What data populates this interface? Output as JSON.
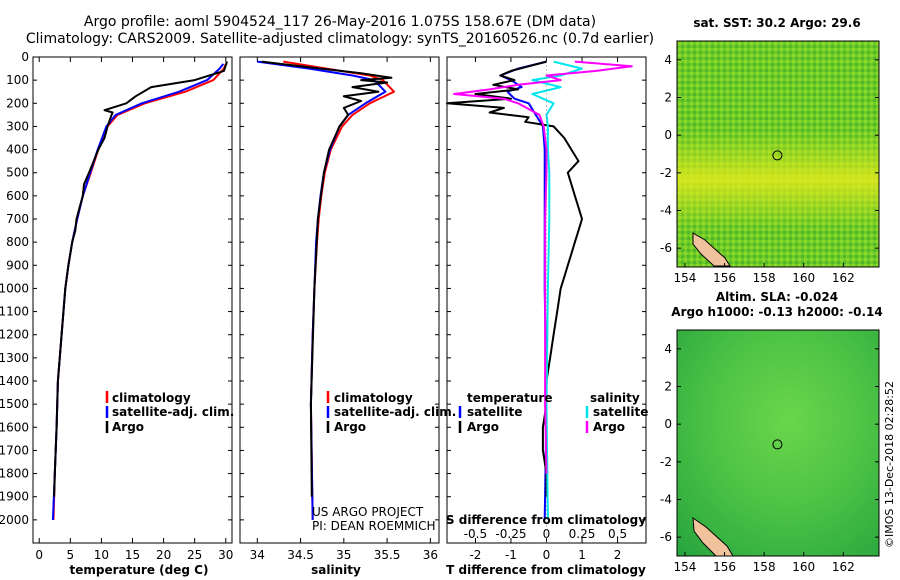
{
  "header": {
    "line1": "Argo profile: aoml 5904524_117 26-May-2016 1.075S 158.67E (DM data)",
    "line2": "Climatology: CARS2009. Satellite-adjusted climatology: synTS_20160526.nc (0.7d earlier)"
  },
  "credit": {
    "line1": "US ARGO PROJECT",
    "line2": "PI: DEAN ROEMMICH"
  },
  "watermark": "©IMOS 13-Dec-2018 02:28:52",
  "colors": {
    "climatology": "#ff0000",
    "satellite": "#0000ff",
    "argo": "#000000",
    "sat_salinity": "#00e5ee",
    "argo_salinity": "#ff00ff"
  },
  "chart_data": [
    {
      "type": "line",
      "xlabel": "temperature (deg C)",
      "ylabel": "",
      "xlim": [
        -1,
        31
      ],
      "ylim": [
        2100,
        0
      ],
      "y_inverted": true,
      "xticks": [
        0,
        5,
        10,
        15,
        20,
        25,
        30
      ],
      "yticks": [
        0,
        100,
        200,
        300,
        400,
        500,
        600,
        700,
        800,
        900,
        1000,
        1100,
        1200,
        1300,
        1400,
        1500,
        1600,
        1700,
        1800,
        1900,
        2000
      ],
      "legend": [
        "climatology",
        "satellite-adj. clim.",
        "Argo"
      ],
      "series": [
        {
          "name": "climatology",
          "color": "#ff0000",
          "depth": [
            30,
            50,
            100,
            150,
            200,
            250,
            300,
            400,
            500,
            600,
            700,
            800,
            900,
            1000,
            1200,
            1400,
            1600,
            1800,
            2000
          ],
          "values": [
            30.0,
            29.7,
            28.0,
            23.5,
            17.0,
            12.6,
            11.0,
            9.5,
            8.3,
            7.0,
            6.1,
            5.3,
            4.7,
            4.2,
            3.6,
            3.0,
            2.8,
            2.5,
            2.3
          ]
        },
        {
          "name": "satellite-adj. clim.",
          "color": "#0000ff",
          "depth": [
            30,
            50,
            100,
            150,
            200,
            250,
            300,
            400,
            500,
            600,
            700,
            800,
            900,
            1000,
            1200,
            1400,
            1600,
            1800,
            2000
          ],
          "values": [
            29.6,
            29.0,
            27.0,
            22.5,
            16.5,
            12.3,
            10.8,
            9.4,
            8.2,
            7.0,
            6.1,
            5.3,
            4.7,
            4.2,
            3.6,
            3.0,
            2.8,
            2.5,
            2.2
          ]
        },
        {
          "name": "Argo",
          "color": "#000000",
          "depth": [
            20,
            60,
            100,
            130,
            170,
            200,
            230,
            240,
            260,
            300,
            350,
            400,
            500,
            550,
            600,
            650,
            700,
            750,
            800,
            900,
            1000,
            1200,
            1400,
            1600,
            1800,
            1900
          ],
          "values": [
            30.2,
            29.7,
            25.0,
            18.0,
            15.5,
            14.0,
            10.5,
            11.8,
            11.5,
            11.0,
            10.5,
            9.5,
            8.0,
            7.2,
            7.0,
            6.5,
            6.0,
            5.8,
            5.3,
            4.7,
            4.2,
            3.6,
            3.0,
            2.8,
            2.5,
            2.4
          ]
        }
      ]
    },
    {
      "type": "line",
      "xlabel": "salinity",
      "ylabel": "",
      "xlim": [
        33.8,
        36.1
      ],
      "ylim": [
        2100,
        0
      ],
      "y_inverted": true,
      "xticks": [
        34,
        34.5,
        35,
        35.5,
        36
      ],
      "xticklabels": [
        "34",
        "34.5",
        "35",
        "35.5",
        "36"
      ],
      "legend": [
        "climatology",
        "satellite-adj. clim.",
        "Argo"
      ],
      "series": [
        {
          "name": "climatology",
          "color": "#ff0000",
          "depth": [
            20,
            50,
            80,
            100,
            150,
            200,
            250,
            300,
            400,
            500,
            600,
            700,
            800,
            1000,
            1200,
            1500,
            2000
          ],
          "values": [
            34.3,
            34.8,
            35.3,
            35.45,
            35.58,
            35.3,
            35.1,
            34.98,
            34.85,
            34.78,
            34.74,
            34.71,
            34.69,
            34.66,
            34.64,
            34.62,
            34.64
          ]
        },
        {
          "name": "satellite-adj. clim.",
          "color": "#0000ff",
          "depth": [
            20,
            50,
            80,
            100,
            150,
            200,
            250,
            300,
            400,
            500,
            600,
            700,
            800,
            1000,
            1200,
            1500,
            2000
          ],
          "values": [
            34.0,
            34.6,
            35.1,
            35.35,
            35.48,
            35.25,
            35.05,
            34.95,
            34.84,
            34.77,
            34.73,
            34.7,
            34.68,
            34.66,
            34.64,
            34.62,
            34.64
          ]
        },
        {
          "name": "Argo",
          "color": "#000000",
          "depth": [
            20,
            40,
            70,
            90,
            100,
            110,
            130,
            150,
            170,
            190,
            220,
            250,
            300,
            400,
            500,
            700,
            1000,
            1500,
            1900
          ],
          "values": [
            34.05,
            34.5,
            35.2,
            35.55,
            35.2,
            35.5,
            35.1,
            35.4,
            35.0,
            35.2,
            35.0,
            35.05,
            34.95,
            34.83,
            34.77,
            34.7,
            34.66,
            34.62,
            34.63
          ]
        }
      ]
    },
    {
      "type": "line",
      "xlabel": "T difference from climatology",
      "xlabel_top": "S difference from climatology",
      "ylabel": "",
      "xlim": [
        -2.8,
        2.8
      ],
      "ylim": [
        2100,
        0
      ],
      "y_inverted": true,
      "xticks": [
        -2,
        -1,
        0,
        1,
        2
      ],
      "xticks_top": [
        -0.5,
        -0.25,
        0,
        0.25,
        0.5
      ],
      "xticklabels_top": [
        "-0.5",
        "-0.25",
        "0",
        "0.25",
        "0.5"
      ],
      "legend_left_title": "temperature",
      "legend_left": [
        "satellite",
        "Argo"
      ],
      "legend_right_title": "salinity",
      "legend_right": [
        "satellite",
        "Argo"
      ],
      "series": [
        {
          "name": "temperature satellite",
          "color": "#0000ff",
          "depth": [
            20,
            50,
            80,
            100,
            130,
            150,
            180,
            200,
            250,
            300,
            400,
            500,
            700,
            1000,
            1500,
            2000
          ],
          "values": [
            0.0,
            -0.8,
            -1.3,
            -1.0,
            -0.7,
            -1.1,
            -0.9,
            -0.5,
            -0.3,
            -0.1,
            -0.05,
            -0.05,
            -0.05,
            -0.05,
            0.0,
            -0.05
          ]
        },
        {
          "name": "temperature Argo",
          "color": "#000000",
          "depth": [
            20,
            40,
            60,
            80,
            100,
            120,
            140,
            160,
            180,
            200,
            220,
            240,
            260,
            280,
            300,
            350,
            400,
            450,
            500,
            550,
            600,
            650,
            700,
            750,
            800,
            850,
            900,
            950,
            1000,
            1100,
            1200,
            1300,
            1400,
            1500,
            1600,
            1700,
            1800,
            1900
          ],
          "values": [
            0.0,
            -0.5,
            -1.0,
            -1.3,
            -0.9,
            -1.5,
            -0.8,
            -2.0,
            -1.0,
            -2.8,
            -1.2,
            -1.6,
            -0.5,
            -0.6,
            0.2,
            0.5,
            0.7,
            0.9,
            0.6,
            0.7,
            0.8,
            0.9,
            1.0,
            0.9,
            0.8,
            0.7,
            0.6,
            0.5,
            0.4,
            0.3,
            0.2,
            0.1,
            0.0,
            0.0,
            -0.1,
            -0.1,
            0.0,
            0.0
          ]
        },
        {
          "name": "salinity satellite",
          "color": "#00e5ee",
          "depth": [
            20,
            50,
            80,
            100,
            130,
            160,
            200,
            250,
            300,
            400,
            500,
            700,
            1000,
            1500,
            2000
          ],
          "values": [
            0.05,
            0.25,
            0.1,
            -0.1,
            0.1,
            -0.1,
            0.05,
            0.0,
            0.01,
            0.01,
            0.02,
            0.02,
            0.01,
            0.0,
            0.01
          ]
        },
        {
          "name": "salinity Argo",
          "color": "#ff00ff",
          "depth": [
            20,
            40,
            60,
            80,
            100,
            120,
            140,
            160,
            180,
            200,
            250,
            300,
            400,
            500,
            700,
            1000,
            1500,
            1800
          ],
          "values": [
            0.2,
            0.6,
            0.35,
            0.0,
            0.1,
            -0.2,
            -0.4,
            -0.65,
            -0.3,
            -0.2,
            -0.05,
            -0.02,
            0.0,
            0.0,
            -0.01,
            -0.01,
            -0.01,
            0.0
          ]
        }
      ]
    },
    {
      "type": "heatmap",
      "title": "sat. SST: 30.2 Argo: 29.6",
      "xlim": [
        153.6,
        163.8
      ],
      "ylim": [
        -7,
        5
      ],
      "xticks": [
        154,
        156,
        158,
        160,
        162
      ],
      "yticks": [
        -6,
        -4,
        -2,
        0,
        2,
        4
      ],
      "marker": {
        "lon": 158.67,
        "lat": -1.075
      },
      "colorscale": [
        "#3aa02a",
        "#7fd321",
        "#d9ec1f",
        "#f3e416"
      ]
    },
    {
      "type": "heatmap",
      "title": "Altim. SLA: -0.024",
      "subtitle": "Argo h1000: -0.13 h2000: -0.14",
      "xlim": [
        153.6,
        163.8
      ],
      "ylim": [
        -7,
        5
      ],
      "xticks": [
        154,
        156,
        158,
        160,
        162
      ],
      "yticks": [
        -6,
        -4,
        -2,
        0,
        2,
        4
      ],
      "marker": {
        "lon": 158.67,
        "lat": -1.075
      },
      "colorscale": [
        "#22a03a",
        "#48c243",
        "#6ad44a"
      ]
    }
  ]
}
